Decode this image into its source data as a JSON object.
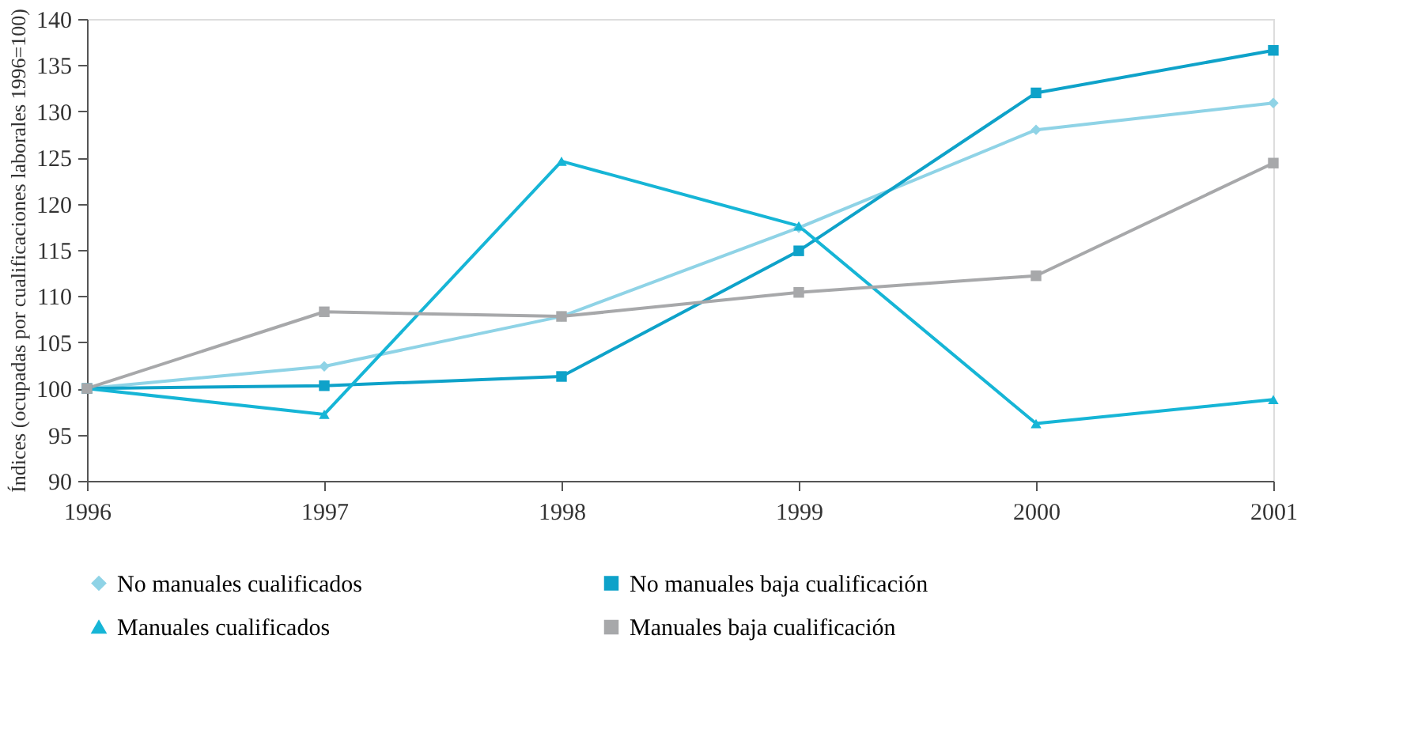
{
  "chart_data": {
    "type": "line",
    "ylabel": "Índices (ocupadas por cualificaciones laborales 1996=100)",
    "x": [
      1996,
      1997,
      1998,
      1999,
      2000,
      2001
    ],
    "series": [
      {
        "name": "No manuales cualificados",
        "color": "#8fd3e6",
        "marker": "diamond",
        "values": [
          100,
          102.4,
          107.8,
          117.4,
          128,
          130.9
        ]
      },
      {
        "name": "No manuales baja cualificación",
        "color": "#0ea2c9",
        "marker": "square",
        "values": [
          100,
          100.3,
          101.3,
          114.9,
          132,
          136.6
        ]
      },
      {
        "name": "Manuales cualificados",
        "color": "#16b5d6",
        "marker": "triangle",
        "values": [
          100,
          97.2,
          124.6,
          117.6,
          96.2,
          98.8
        ]
      },
      {
        "name": "Manuales baja cualificación",
        "color": "#a7a8aa",
        "marker": "square",
        "values": [
          100,
          108.3,
          107.8,
          110.4,
          112.2,
          124.4
        ]
      }
    ],
    "xlim": [
      1996,
      2001
    ],
    "xticks": [
      1996,
      1997,
      1998,
      1999,
      2000,
      2001
    ],
    "ylim": [
      90,
      140
    ],
    "yticks": [
      90,
      95,
      100,
      105,
      110,
      115,
      120,
      125,
      130,
      135,
      140
    ],
    "grid": false,
    "legend": "bottom",
    "line_style": "solid"
  }
}
